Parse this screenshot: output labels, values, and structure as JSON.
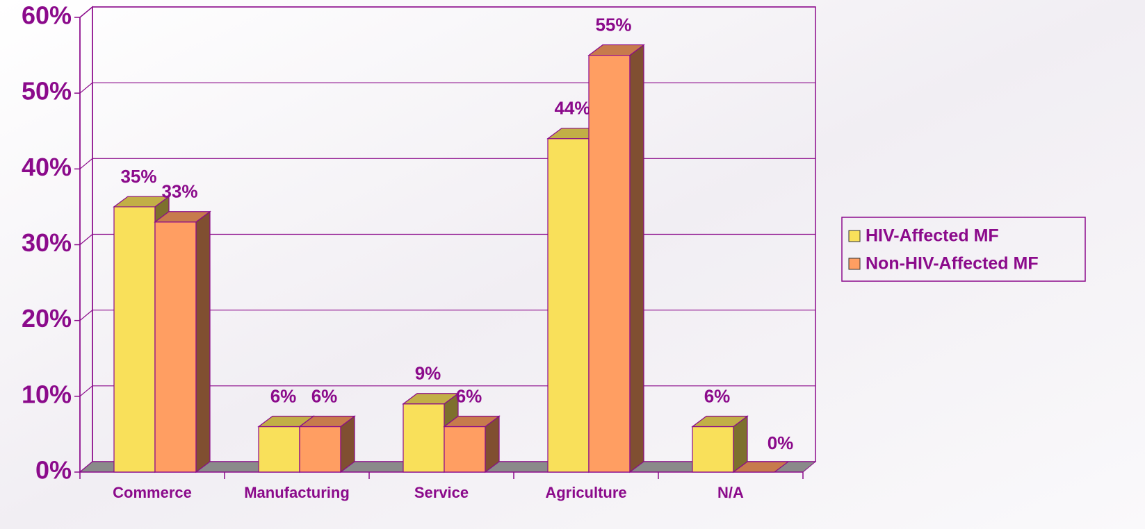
{
  "chart_data": {
    "type": "bar3d",
    "categories": [
      "Commerce",
      "Manufacturing",
      "Service",
      "Agriculture",
      "N/A"
    ],
    "series": [
      {
        "name": "HIV-Affected MF",
        "color": "#f9e05a",
        "values": [
          35,
          6,
          9,
          44,
          6
        ],
        "value_labels": [
          "35%",
          "6%",
          "9%",
          "44%",
          "6%"
        ]
      },
      {
        "name": "Non-HIV-Affected MF",
        "color": "#ff9e62",
        "values": [
          33,
          6,
          6,
          55,
          0
        ],
        "value_labels": [
          "33%",
          "6%",
          "6%",
          "55%",
          "0%"
        ]
      }
    ],
    "ylim": [
      0,
      60
    ],
    "yticks": [
      {
        "value": 0,
        "label": "0%"
      },
      {
        "value": 10,
        "label": "10%"
      },
      {
        "value": 20,
        "label": "20%"
      },
      {
        "value": 30,
        "label": "30%"
      },
      {
        "value": 40,
        "label": "40%"
      },
      {
        "value": 50,
        "label": "50%"
      },
      {
        "value": 60,
        "label": "60%"
      }
    ],
    "grid": true,
    "legend": "right"
  }
}
